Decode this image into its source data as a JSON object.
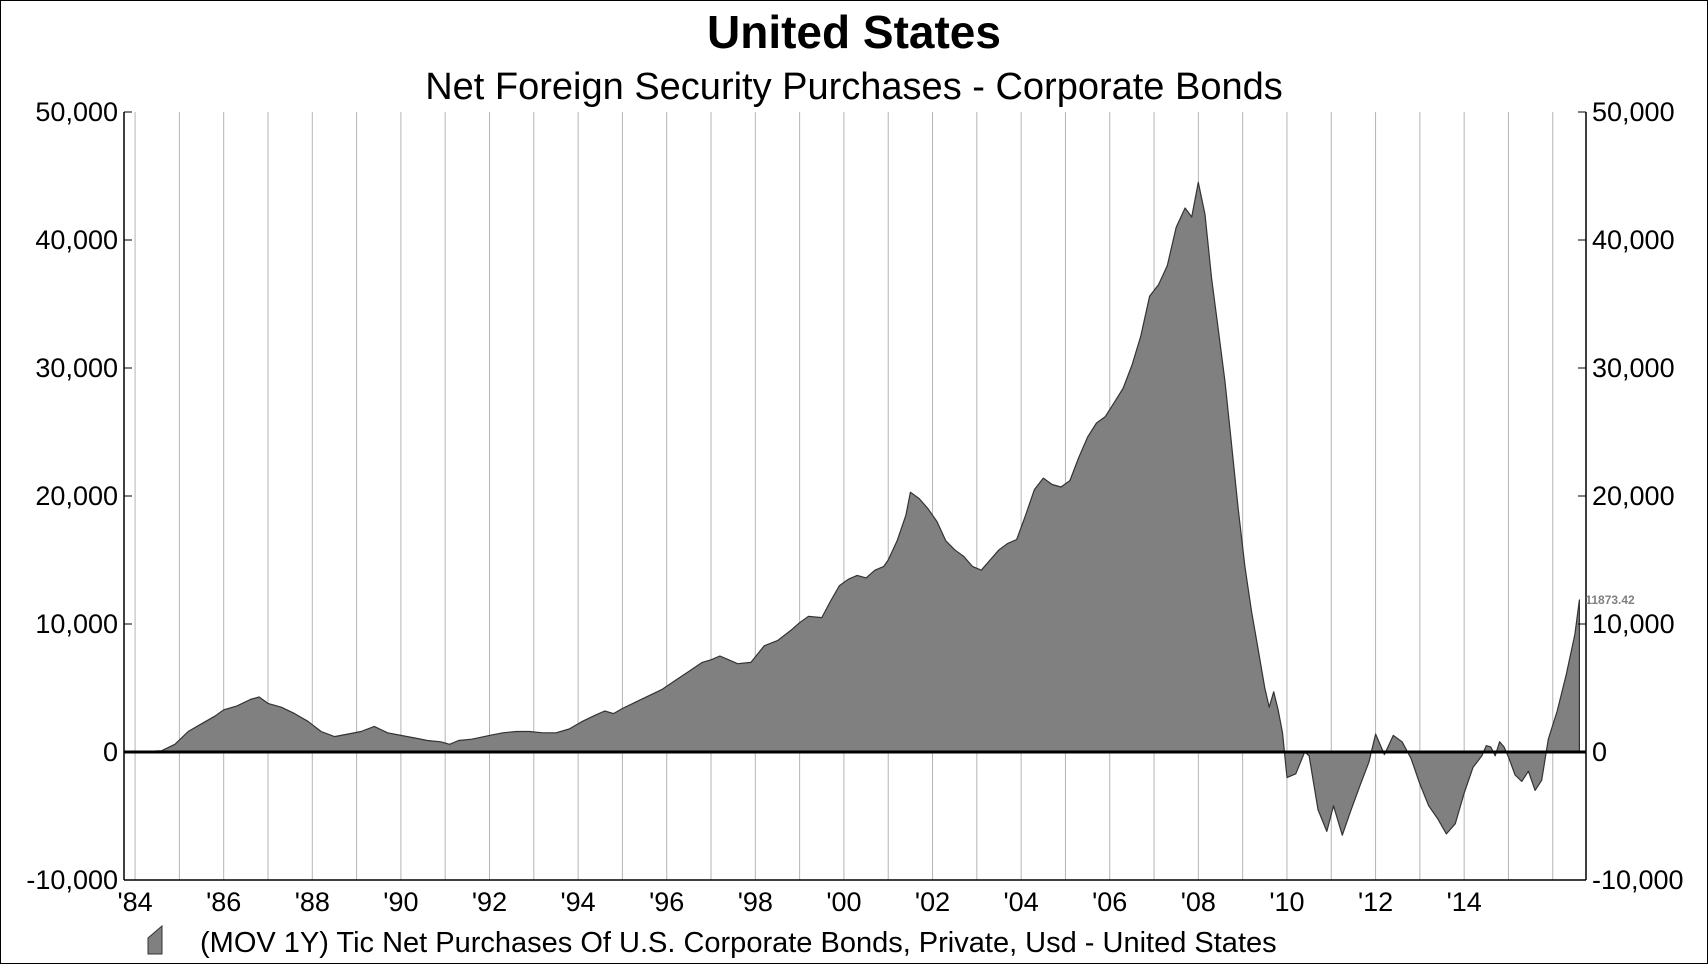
{
  "chart_data": {
    "type": "area",
    "title": "United States",
    "subtitle": "Net Foreign Security Purchases - Corporate Bonds",
    "xlabel": "",
    "ylabel": "",
    "xlim": [
      1983.75,
      2016.75
    ],
    "ylim": [
      -10000,
      50000
    ],
    "y_ticks": [
      50000,
      40000,
      30000,
      20000,
      10000,
      0,
      -10000
    ],
    "y_tick_labels": [
      "50,000",
      "40,000",
      "30,000",
      "20,000",
      "10,000",
      "0",
      "-10,000"
    ],
    "x_ticks": [
      1984,
      1986,
      1988,
      1990,
      1992,
      1994,
      1996,
      1998,
      2000,
      2002,
      2004,
      2006,
      2008,
      2010,
      2012,
      2014
    ],
    "x_tick_labels": [
      "'84",
      "'86",
      "'88",
      "'90",
      "'92",
      "'94",
      "'96",
      "'98",
      "'00",
      "'02",
      "'04",
      "'06",
      "'08",
      "'10",
      "'12",
      "'14"
    ],
    "grid": {
      "vertical": true,
      "horizontal": false
    },
    "fill_color": "#808080",
    "line_color": "#333333",
    "zero_line_color": "#000000",
    "last_value_label": "11873.42",
    "legend": {
      "position": "bottom-left",
      "entries": [
        "(MOV 1Y) Tic Net Purchases Of U.S. Corporate Bonds, Private, Usd - United States"
      ]
    },
    "series": [
      {
        "points": [
          [
            1984.0,
            0
          ],
          [
            1984.6,
            100
          ],
          [
            1984.9,
            600
          ],
          [
            1985.2,
            1600
          ],
          [
            1985.5,
            2200
          ],
          [
            1985.8,
            2800
          ],
          [
            1986.0,
            3300
          ],
          [
            1986.3,
            3600
          ],
          [
            1986.6,
            4100
          ],
          [
            1986.8,
            4300
          ],
          [
            1987.0,
            3800
          ],
          [
            1987.3,
            3500
          ],
          [
            1987.6,
            3000
          ],
          [
            1987.9,
            2400
          ],
          [
            1988.2,
            1600
          ],
          [
            1988.5,
            1200
          ],
          [
            1988.8,
            1400
          ],
          [
            1989.1,
            1600
          ],
          [
            1989.4,
            2000
          ],
          [
            1989.7,
            1500
          ],
          [
            1990.0,
            1300
          ],
          [
            1990.3,
            1100
          ],
          [
            1990.6,
            900
          ],
          [
            1990.9,
            800
          ],
          [
            1991.1,
            600
          ],
          [
            1991.3,
            900
          ],
          [
            1991.6,
            1000
          ],
          [
            1992.0,
            1300
          ],
          [
            1992.3,
            1500
          ],
          [
            1992.6,
            1600
          ],
          [
            1992.9,
            1600
          ],
          [
            1993.2,
            1500
          ],
          [
            1993.5,
            1500
          ],
          [
            1993.8,
            1800
          ],
          [
            1994.1,
            2400
          ],
          [
            1994.4,
            2900
          ],
          [
            1994.6,
            3200
          ],
          [
            1994.8,
            3000
          ],
          [
            1995.0,
            3400
          ],
          [
            1995.3,
            3900
          ],
          [
            1995.6,
            4400
          ],
          [
            1995.9,
            4900
          ],
          [
            1996.2,
            5600
          ],
          [
            1996.5,
            6300
          ],
          [
            1996.8,
            7000
          ],
          [
            1997.0,
            7200
          ],
          [
            1997.2,
            7500
          ],
          [
            1997.4,
            7200
          ],
          [
            1997.6,
            6900
          ],
          [
            1997.9,
            7000
          ],
          [
            1998.2,
            8300
          ],
          [
            1998.5,
            8700
          ],
          [
            1998.8,
            9500
          ],
          [
            1999.0,
            10100
          ],
          [
            1999.2,
            10600
          ],
          [
            1999.5,
            10500
          ],
          [
            1999.7,
            11800
          ],
          [
            1999.9,
            13000
          ],
          [
            2000.1,
            13500
          ],
          [
            2000.3,
            13800
          ],
          [
            2000.5,
            13600
          ],
          [
            2000.7,
            14200
          ],
          [
            2000.9,
            14500
          ],
          [
            2001.0,
            15000
          ],
          [
            2001.2,
            16500
          ],
          [
            2001.4,
            18500
          ],
          [
            2001.5,
            20300
          ],
          [
            2001.7,
            19800
          ],
          [
            2001.9,
            19000
          ],
          [
            2002.1,
            18000
          ],
          [
            2002.3,
            16500
          ],
          [
            2002.5,
            15800
          ],
          [
            2002.7,
            15300
          ],
          [
            2002.9,
            14500
          ],
          [
            2003.1,
            14200
          ],
          [
            2003.3,
            15000
          ],
          [
            2003.5,
            15800
          ],
          [
            2003.7,
            16300
          ],
          [
            2003.9,
            16600
          ],
          [
            2004.1,
            18500
          ],
          [
            2004.3,
            20500
          ],
          [
            2004.5,
            21400
          ],
          [
            2004.7,
            20900
          ],
          [
            2004.9,
            20700
          ],
          [
            2005.1,
            21200
          ],
          [
            2005.3,
            23000
          ],
          [
            2005.5,
            24600
          ],
          [
            2005.7,
            25700
          ],
          [
            2005.9,
            26200
          ],
          [
            2006.1,
            27300
          ],
          [
            2006.3,
            28400
          ],
          [
            2006.5,
            30200
          ],
          [
            2006.7,
            32500
          ],
          [
            2006.9,
            35600
          ],
          [
            2007.1,
            36500
          ],
          [
            2007.3,
            38000
          ],
          [
            2007.5,
            41000
          ],
          [
            2007.7,
            42500
          ],
          [
            2007.85,
            41800
          ],
          [
            2008.0,
            44500
          ],
          [
            2008.15,
            42000
          ],
          [
            2008.3,
            37000
          ],
          [
            2008.45,
            33000
          ],
          [
            2008.6,
            29000
          ],
          [
            2008.75,
            24000
          ],
          [
            2008.9,
            19000
          ],
          [
            2009.05,
            14500
          ],
          [
            2009.2,
            11000
          ],
          [
            2009.35,
            8000
          ],
          [
            2009.5,
            5000
          ],
          [
            2009.6,
            3500
          ],
          [
            2009.7,
            4700
          ],
          [
            2009.8,
            3300
          ],
          [
            2009.9,
            1500
          ],
          [
            2010.0,
            -2000
          ],
          [
            2010.2,
            -1700
          ],
          [
            2010.4,
            0
          ],
          [
            2010.5,
            -300
          ],
          [
            2010.7,
            -4500
          ],
          [
            2010.9,
            -6200
          ],
          [
            2011.05,
            -4200
          ],
          [
            2011.25,
            -6500
          ],
          [
            2011.45,
            -4500
          ],
          [
            2011.65,
            -2600
          ],
          [
            2011.85,
            -800
          ],
          [
            2012.0,
            1400
          ],
          [
            2012.1,
            600
          ],
          [
            2012.2,
            -200
          ],
          [
            2012.4,
            1300
          ],
          [
            2012.6,
            800
          ],
          [
            2012.8,
            -500
          ],
          [
            2013.0,
            -2500
          ],
          [
            2013.2,
            -4200
          ],
          [
            2013.4,
            -5200
          ],
          [
            2013.6,
            -6400
          ],
          [
            2013.8,
            -5600
          ],
          [
            2014.0,
            -3200
          ],
          [
            2014.2,
            -1200
          ],
          [
            2014.4,
            -300
          ],
          [
            2014.5,
            500
          ],
          [
            2014.6,
            400
          ],
          [
            2014.7,
            -300
          ],
          [
            2014.8,
            800
          ],
          [
            2014.9,
            400
          ],
          [
            2015.0,
            -400
          ],
          [
            2015.15,
            -1800
          ],
          [
            2015.3,
            -2300
          ],
          [
            2015.45,
            -1500
          ],
          [
            2015.6,
            -3000
          ],
          [
            2015.75,
            -2200
          ],
          [
            2015.9,
            1000
          ],
          [
            2016.1,
            3200
          ],
          [
            2016.3,
            6000
          ],
          [
            2016.5,
            9200
          ],
          [
            2016.6,
            11873
          ]
        ]
      }
    ]
  }
}
